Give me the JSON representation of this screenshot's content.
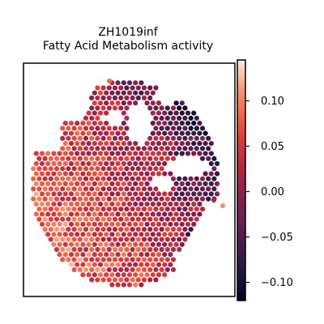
{
  "chart_data": {
    "type": "heatmap",
    "subtype": "spatial-hex-scatter",
    "title": "ZH1019inf",
    "subtitle": "Fatty Acid Metabolism activity",
    "xlabel": "",
    "ylabel": "",
    "colormap": "rocket",
    "colorbar": {
      "min": -0.12,
      "max": 0.145,
      "ticks": [
        0.1,
        0.05,
        0.0,
        -0.05,
        -0.1
      ],
      "tick_labels": [
        "0.10",
        "0.05",
        "0.00",
        "−0.05",
        "−0.10"
      ],
      "placement": "right"
    },
    "grid": false,
    "legend": "none",
    "axes_ticks": false
  }
}
